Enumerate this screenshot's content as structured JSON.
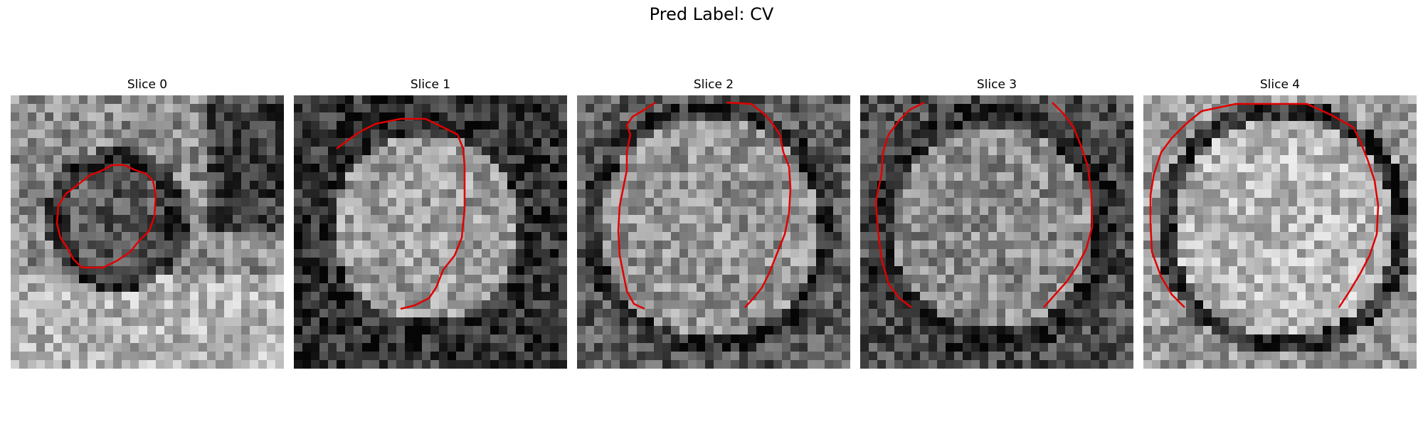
{
  "figure": {
    "title": "Pred Label: CV"
  },
  "panels": [
    {
      "title": "Slice 0",
      "seed": 11,
      "outline": "small-ellipse",
      "contour_color": "#e00000"
    },
    {
      "title": "Slice 1",
      "seed": 23,
      "outline": "rounded-blob",
      "contour_color": "#e00000"
    },
    {
      "title": "Slice 2",
      "seed": 37,
      "outline": "open-top-large",
      "contour_color": "#e00000"
    },
    {
      "title": "Slice 3",
      "seed": 41,
      "outline": "open-top-large",
      "contour_color": "#e00000"
    },
    {
      "title": "Slice 4",
      "seed": 53,
      "outline": "octagon-large",
      "contour_color": "#e00000"
    }
  ]
}
